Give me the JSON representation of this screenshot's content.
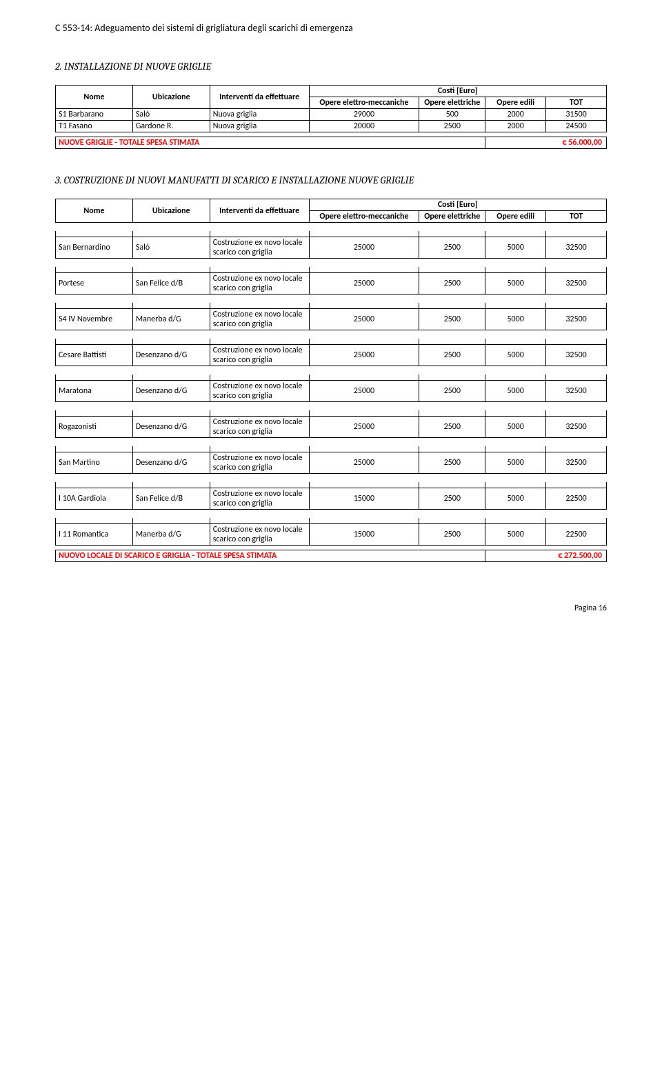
{
  "doc_title": "C 553-14: Adeguamento dei sistemi di grigliatura degli scarichi di emergenza",
  "section2": {
    "heading": "2. INSTALLAZIONE DI NUOVE GRIGLIE",
    "cols": {
      "nome": "Nome",
      "ubicazione": "Ubicazione",
      "interventi": "Interventi da effettuare",
      "costi": "Costi [Euro]",
      "em": "Opere elettro-meccaniche",
      "el": "Opere elettriche",
      "ed": "Opere edili",
      "tot": "TOT"
    },
    "rows": [
      {
        "nome": "S1 Barbarano",
        "ubi": "Salò",
        "int": "Nuova griglia",
        "em": "29000",
        "el": "500",
        "ed": "2000",
        "tot": "31500"
      },
      {
        "nome": "T1 Fasano",
        "ubi": "Gardone R.",
        "int": "Nuova griglia",
        "em": "20000",
        "el": "2500",
        "ed": "2000",
        "tot": "24500"
      }
    ],
    "summary_label": "NUOVE GRIGLIE - TOTALE SPESA STIMATA",
    "summary_value": "€ 56.000,00"
  },
  "section3": {
    "heading": "3. COSTRUZIONE DI NUOVI MANUFATTI DI SCARICO E INSTALLAZIONE NUOVE GRIGLIE",
    "cols": {
      "nome": "Nome",
      "ubicazione": "Ubicazione",
      "interventi": "Interventi da effettuare",
      "costi": "Costi [Euro]",
      "em": "Opere elettro-meccaniche",
      "el": "Opere elettriche",
      "ed": "Opere edili",
      "tot": "TOT"
    },
    "intervento_text": "Costruzione ex novo locale scarico con griglia",
    "rows": [
      {
        "nome": "San Bernardino",
        "ubi": "Salò",
        "em": "25000",
        "el": "2500",
        "ed": "5000",
        "tot": "32500"
      },
      {
        "nome": "Portese",
        "ubi": "San Felice d/B",
        "em": "25000",
        "el": "2500",
        "ed": "5000",
        "tot": "32500"
      },
      {
        "nome": "S4 IV Novembre",
        "ubi": "Manerba d/G",
        "em": "25000",
        "el": "2500",
        "ed": "5000",
        "tot": "32500"
      },
      {
        "nome": "Cesare Battisti",
        "ubi": "Desenzano d/G",
        "em": "25000",
        "el": "2500",
        "ed": "5000",
        "tot": "32500"
      },
      {
        "nome": "Maratona",
        "ubi": "Desenzano d/G",
        "em": "25000",
        "el": "2500",
        "ed": "5000",
        "tot": "32500"
      },
      {
        "nome": "Rogazonisti",
        "ubi": "Desenzano d/G",
        "em": "25000",
        "el": "2500",
        "ed": "5000",
        "tot": "32500"
      },
      {
        "nome": "San Martino",
        "ubi": "Desenzano d/G",
        "em": "25000",
        "el": "2500",
        "ed": "5000",
        "tot": "32500"
      },
      {
        "nome": "I 10A Gardiola",
        "ubi": "San Felice d/B",
        "em": "15000",
        "el": "2500",
        "ed": "5000",
        "tot": "22500"
      },
      {
        "nome": "I 11 Romantica",
        "ubi": "Manerba d/G",
        "em": "15000",
        "el": "2500",
        "ed": "5000",
        "tot": "22500"
      }
    ],
    "summary_label": "NUOVO LOCALE DI SCARICO E GRIGLIA - TOTALE SPESA STIMATA",
    "summary_value": "€ 272.500,00"
  },
  "page_label": "Pagina 16",
  "colwidths": {
    "nome": "14%",
    "ubi": "14%",
    "int": "18%",
    "em": "20%",
    "el": "12%",
    "ed": "11%",
    "tot": "11%"
  }
}
